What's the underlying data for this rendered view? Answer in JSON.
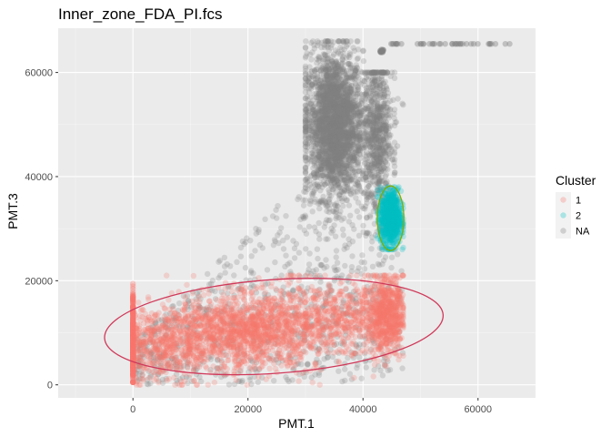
{
  "chart_data": {
    "type": "scatter",
    "title": "Inner_zone_FDA_PI.fcs",
    "xlabel": "PMT.1",
    "ylabel": "PMT.3",
    "xlim": [
      -13000,
      70000
    ],
    "ylim": [
      -2500,
      68500
    ],
    "x_ticks": [
      0,
      20000,
      40000,
      60000
    ],
    "y_ticks": [
      0,
      20000,
      40000,
      60000
    ],
    "grid": true,
    "legend": {
      "title": "Cluster",
      "position": "right",
      "entries": [
        {
          "label": "1",
          "color": "#f8766d"
        },
        {
          "label": "2",
          "color": "#00bfc4"
        },
        {
          "label": "NA",
          "color": "#7f7f7f"
        }
      ]
    },
    "series": [
      {
        "name": "1",
        "color": "#f8766d",
        "point_alpha": 0.25,
        "approx_distribution": {
          "x_range": [
            0,
            47000
          ],
          "y_range": [
            0,
            21000
          ],
          "center": [
            23000,
            10500
          ],
          "density_note": "dense band sloping upward; dense vertical stack at x=0"
        },
        "ellipse": {
          "center": [
            24500,
            11200
          ],
          "semi_x": 29500,
          "semi_y": 9000,
          "angle_deg": 4,
          "color": "#d0395a"
        }
      },
      {
        "name": "2",
        "color": "#00bfc4",
        "point_alpha": 0.25,
        "approx_distribution": {
          "x_range": [
            42500,
            47000
          ],
          "y_range": [
            26000,
            38000
          ],
          "center": [
            44800,
            32000
          ]
        },
        "ellipse": {
          "center": [
            44800,
            32000
          ],
          "semi_x": 2300,
          "semi_y": 6200,
          "angle_deg": 0,
          "color": "#7cae00"
        }
      },
      {
        "name": "NA",
        "color": "#7f7f7f",
        "point_alpha": 0.25,
        "approx_distribution": {
          "main_cluster_center": [
            35000,
            50000
          ],
          "main_cluster_range_x": [
            30000,
            43000
          ],
          "main_cluster_range_y": [
            28000,
            66000
          ],
          "background_range_x": [
            0,
            47000
          ],
          "background_range_y": [
            0,
            60000
          ],
          "top_row_y": 65500,
          "top_row_x_range": [
            44500,
            65500
          ]
        }
      }
    ]
  }
}
